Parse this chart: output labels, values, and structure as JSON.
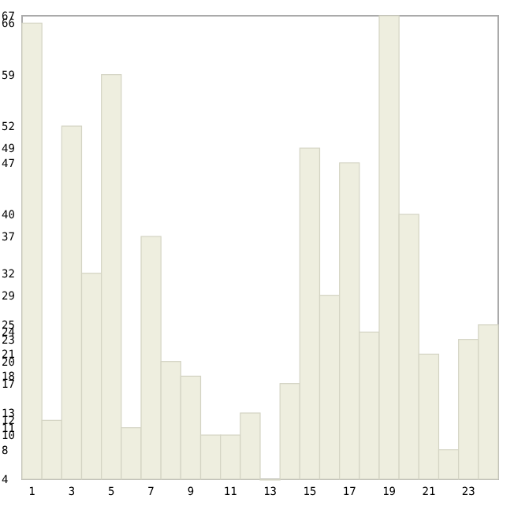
{
  "chart_data": {
    "type": "bar",
    "categories": [
      "1",
      null,
      "3",
      null,
      "5",
      null,
      "7",
      null,
      "9",
      null,
      "11",
      null,
      "13",
      null,
      "15",
      null,
      "17",
      null,
      "19",
      null,
      "21",
      null,
      "23",
      null
    ],
    "values": [
      66,
      12,
      52,
      32,
      59,
      11,
      37,
      20,
      18,
      10,
      10,
      13,
      4,
      17,
      49,
      29,
      47,
      24,
      67,
      40,
      21,
      8,
      23,
      25
    ],
    "color": "#eeeedf",
    "ylim": [
      4,
      67
    ],
    "yticks": [
      4,
      8,
      10,
      11,
      12,
      13,
      17,
      18,
      20,
      21,
      23,
      24,
      25,
      29,
      32,
      37,
      40,
      47,
      49,
      52,
      59,
      66,
      67
    ],
    "grid": false
  }
}
